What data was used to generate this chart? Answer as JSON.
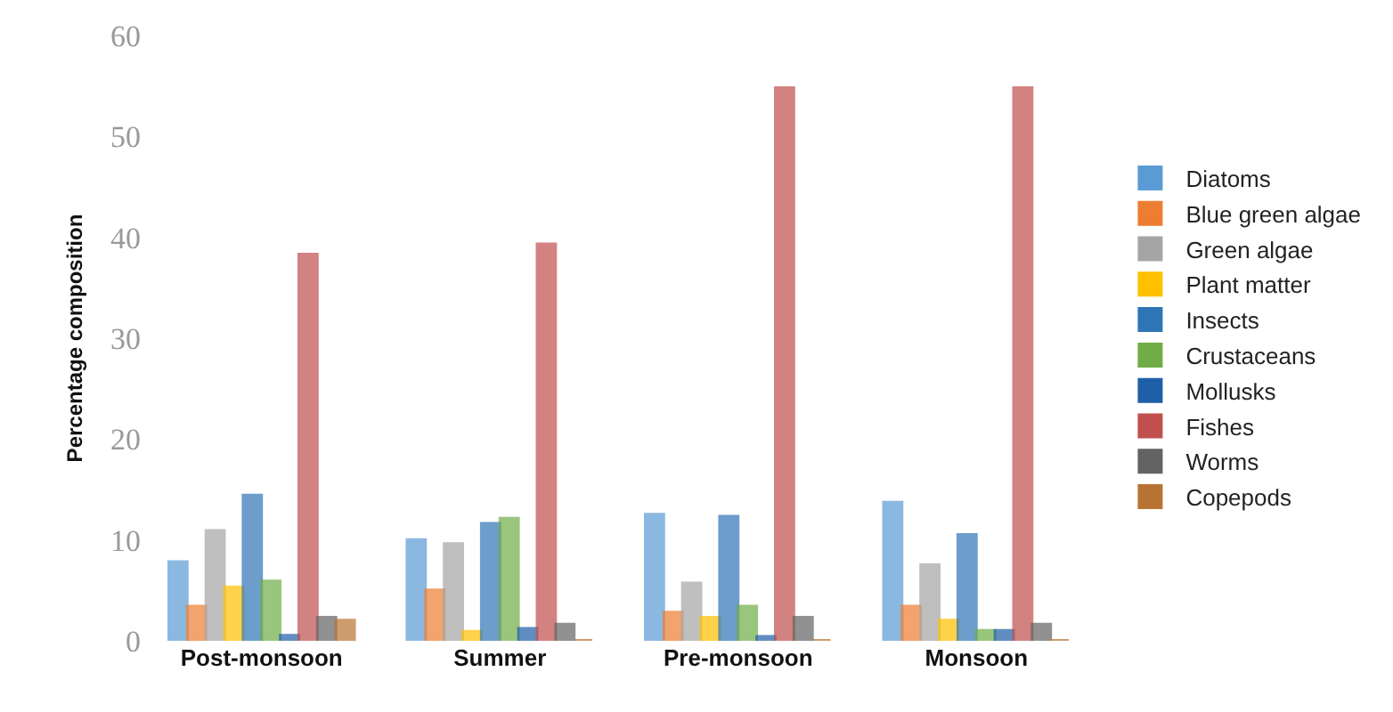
{
  "chart_data": {
    "type": "bar",
    "ylabel": "Percentage composition",
    "categories": [
      "Post-monsoon",
      "Summer",
      "Pre-monsoon",
      "Monsoon"
    ],
    "ylim": [
      0,
      60
    ],
    "yticks": [
      0,
      10,
      20,
      30,
      40,
      50,
      60
    ],
    "grid": false,
    "legend": "right",
    "series": [
      {
        "name": "Diatoms",
        "color": "#5b9bd5",
        "values": [
          7.8,
          10,
          12.5,
          13.7
        ]
      },
      {
        "name": "Blue green algae",
        "color": "#ed7d31",
        "values": [
          3.4,
          5,
          2.8,
          3.4
        ]
      },
      {
        "name": "Green algae",
        "color": "#a5a5a5",
        "values": [
          10.9,
          9.6,
          5.7,
          7.5
        ]
      },
      {
        "name": "Plant matter",
        "color": "#ffc000",
        "values": [
          5.3,
          0.9,
          2.3,
          2
        ]
      },
      {
        "name": "Insects",
        "color": "#2e75b6",
        "values": [
          14.4,
          11.6,
          12.3,
          10.5
        ]
      },
      {
        "name": "Crustaceans",
        "color": "#70ad47",
        "values": [
          5.9,
          12.1,
          3.4,
          1
        ]
      },
      {
        "name": "Mollusks",
        "color": "#1f5fa8",
        "values": [
          0.5,
          1.2,
          0.4,
          1
        ]
      },
      {
        "name": "Fishes",
        "color": "#c0504d",
        "values": [
          38.3,
          39.3,
          54.8,
          54.8
        ]
      },
      {
        "name": "Worms",
        "color": "#636363",
        "values": [
          2.3,
          1.6,
          2.3,
          1.6
        ]
      },
      {
        "name": "Copepods",
        "color": "#b87333",
        "values": [
          2,
          0,
          0,
          0
        ]
      }
    ]
  }
}
